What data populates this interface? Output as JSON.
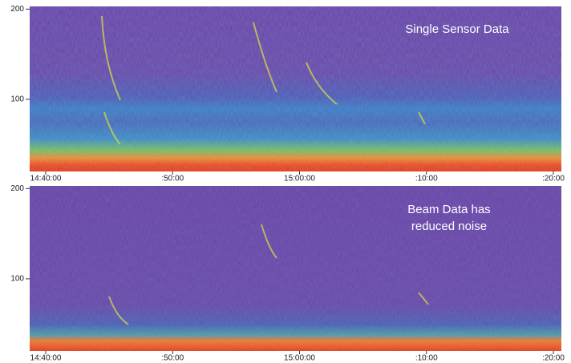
{
  "chart_data": [
    {
      "type": "spectrogram",
      "annotation": [
        "Single Sensor Data"
      ],
      "ylim": [
        20,
        203
      ],
      "yticks": [
        100,
        200
      ],
      "xticks": [
        "14:40:00",
        ":50:00",
        "15:00:00",
        ":10:00",
        ":20:00"
      ]
    },
    {
      "type": "spectrogram",
      "annotation": [
        "Beam Data has",
        "reduced noise"
      ],
      "ylim": [
        20,
        203
      ],
      "yticks": [
        100,
        200
      ],
      "xticks": [
        "14:40:00",
        ":50:00",
        "15:00:00",
        ":10:00",
        ":20:00"
      ]
    }
  ]
}
